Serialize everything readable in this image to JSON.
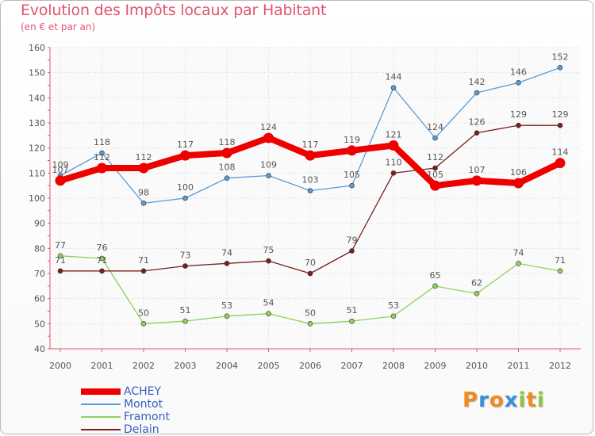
{
  "header": {
    "title": "Evolution des Impôts locaux par Habitant",
    "subtitle": "(en € et par an)"
  },
  "brand": {
    "letters": [
      "P",
      "r",
      "o",
      "x",
      "i",
      "t",
      "i"
    ],
    "colors": [
      "#f08a1c",
      "#3a8fd8",
      "#f08a1c",
      "#3a8fd8",
      "#8cc63f",
      "#f08a1c",
      "#8cc63f"
    ]
  },
  "chart_data": {
    "type": "line",
    "x": [
      "2000",
      "2001",
      "2002",
      "2003",
      "2004",
      "2005",
      "2006",
      "2007",
      "2008",
      "2009",
      "2010",
      "2011",
      "2012"
    ],
    "ylim": [
      40,
      160
    ],
    "yticks": [
      40,
      50,
      60,
      70,
      80,
      90,
      100,
      110,
      120,
      130,
      140,
      150,
      160
    ],
    "grid": true,
    "legend_position": "bottom-left",
    "series": [
      {
        "name": "Montot",
        "color": "#5b9bd5",
        "values": [
          109,
          118,
          98,
          100,
          108,
          109,
          103,
          105,
          144,
          124,
          142,
          146,
          152
        ]
      },
      {
        "name": "Framont",
        "color": "#8fd15a",
        "values": [
          77,
          76,
          50,
          51,
          53,
          54,
          50,
          51,
          53,
          65,
          62,
          74,
          71
        ]
      },
      {
        "name": "Delain",
        "color": "#7a1f1f",
        "values": [
          71,
          71,
          71,
          73,
          74,
          75,
          70,
          79,
          110,
          112,
          126,
          129,
          129
        ]
      },
      {
        "name": "ACHEY",
        "color": "#ee0000",
        "values": [
          107,
          112,
          112,
          117,
          118,
          124,
          117,
          119,
          121,
          105,
          107,
          106,
          114
        ]
      }
    ],
    "legend_order": [
      "ACHEY",
      "Montot",
      "Framont",
      "Delain"
    ]
  }
}
